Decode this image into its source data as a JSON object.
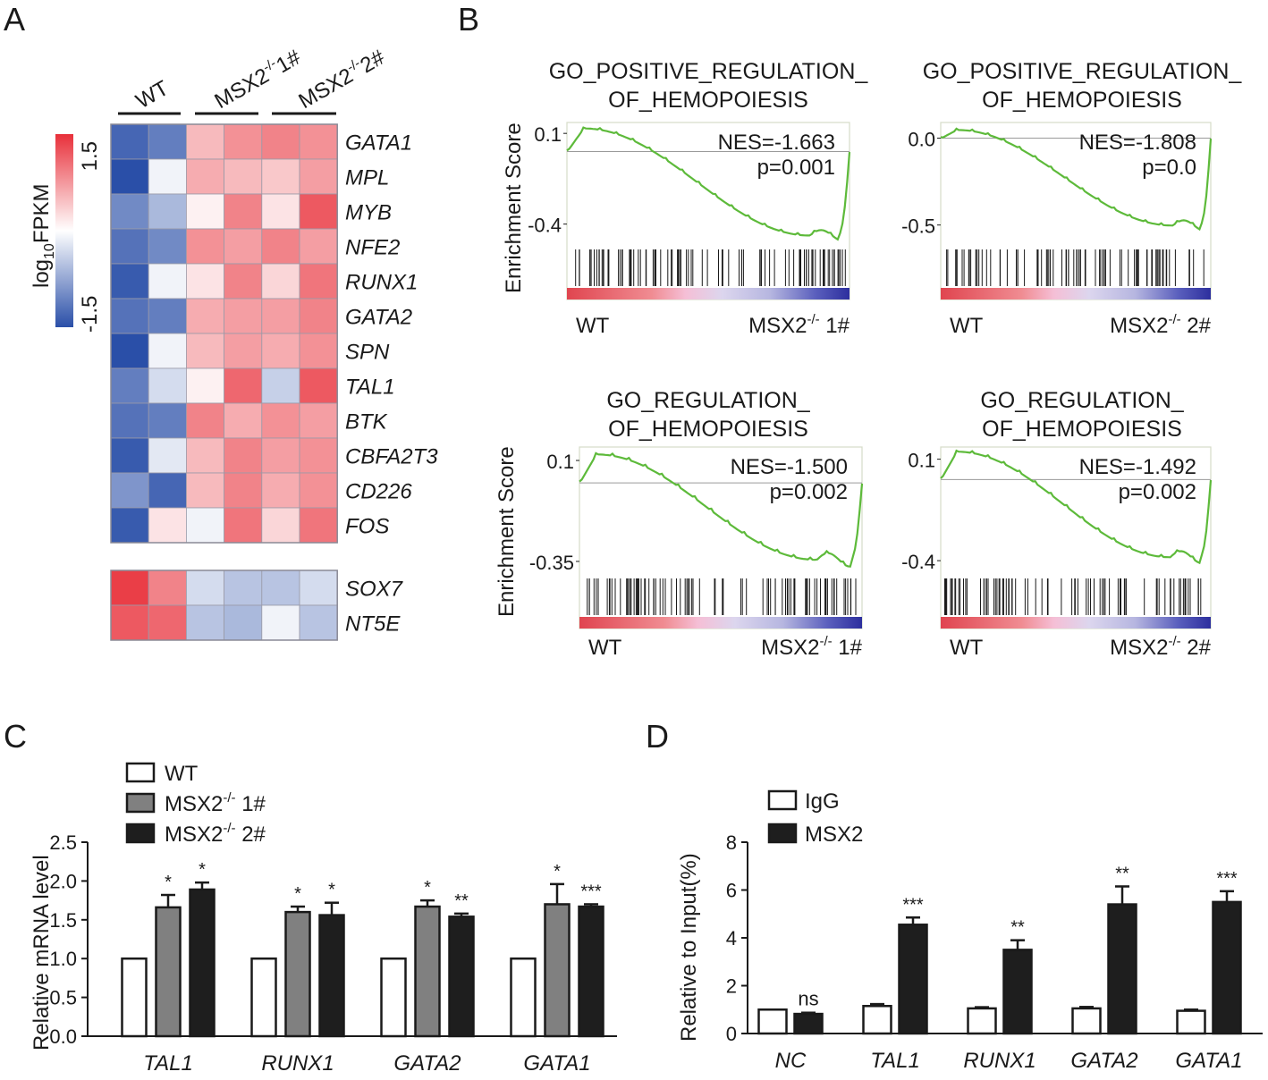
{
  "panels": {
    "a": "A",
    "b": "B",
    "c": "C",
    "d": "D"
  },
  "chart_data": [
    {
      "type": "heatmap",
      "panel": "A",
      "colorbar": {
        "label_main": "log",
        "label_sub": "10",
        "label_tail": "FPKM",
        "max_label": "1.5",
        "min_label": "-1.5",
        "min": -1.5,
        "max": 1.5,
        "low_color": "#2a4fa8",
        "mid_color": "#ffffff",
        "high_color": "#e8303a"
      },
      "groups": [
        {
          "label": "WT",
          "sup": ""
        },
        {
          "label": "MSX2",
          "sup": "-/-",
          "tail": "1#"
        },
        {
          "label": "MSX2",
          "sup": "-/-",
          "tail": "2#"
        }
      ],
      "genes_top": [
        "GATA1",
        "MPL",
        "MYB",
        "NFE2",
        "RUNX1",
        "GATA2",
        "SPN",
        "TAL1",
        "BTK",
        "CBFA2T3",
        "CD226",
        "FOS"
      ],
      "values_top": [
        [
          -1.3,
          -1.1,
          0.5,
          0.8,
          0.9,
          0.8
        ],
        [
          -1.5,
          -0.1,
          0.6,
          0.5,
          0.4,
          0.7
        ],
        [
          -1.0,
          -0.6,
          0.1,
          0.9,
          0.2,
          1.2
        ],
        [
          -1.2,
          -1.0,
          0.8,
          0.7,
          0.9,
          0.7
        ],
        [
          -1.4,
          -0.1,
          0.2,
          0.9,
          0.3,
          1.0
        ],
        [
          -1.2,
          -1.1,
          0.6,
          0.7,
          0.7,
          0.9
        ],
        [
          -1.5,
          -0.1,
          0.5,
          0.7,
          0.6,
          0.8
        ],
        [
          -1.1,
          -0.3,
          0.1,
          1.1,
          -0.4,
          1.2
        ],
        [
          -1.2,
          -1.1,
          0.9,
          0.6,
          0.8,
          0.7
        ],
        [
          -1.4,
          -0.2,
          0.5,
          0.9,
          0.7,
          0.8
        ],
        [
          -0.9,
          -1.3,
          0.5,
          0.9,
          0.6,
          0.8
        ],
        [
          -1.4,
          0.2,
          -0.1,
          1.0,
          0.3,
          1.0
        ]
      ],
      "genes_bottom": [
        "SOX7",
        "NT5E"
      ],
      "values_bottom": [
        [
          1.4,
          0.9,
          -0.3,
          -0.5,
          -0.5,
          -0.3
        ],
        [
          1.2,
          1.1,
          -0.5,
          -0.6,
          -0.1,
          -0.5
        ]
      ]
    },
    {
      "type": "line",
      "panel": "B",
      "ylabel": "Enrichment Score",
      "plots": [
        {
          "title_1": "GO_POSITIVE_REGULATION_",
          "title_2": "OF_HEMOPOIESIS",
          "nes": "NES=-1.663",
          "p": "p=0.001",
          "ytick_top": "0.1",
          "ytick_bottom": "-0.4",
          "ylim": [
            -0.52,
            0.16
          ],
          "ytop": 0.1,
          "ybottom": -0.4,
          "zero": 0.0,
          "x_left": "WT",
          "x_right_main": "MSX2",
          "x_right_sup": "-/-",
          "x_right_tail": " 1#",
          "min_es": -0.46,
          "min_pos": 0.86,
          "peak": 0.13
        },
        {
          "title_1": "GO_POSITIVE_REGULATION_",
          "title_2": "OF_HEMOPOIESIS",
          "nes": "NES=-1.808",
          "p": "p=0.0",
          "ytick_top": "0.0",
          "ytick_bottom": "-0.5",
          "ylim": [
            -0.62,
            0.09
          ],
          "ytop": 0.0,
          "ybottom": -0.5,
          "zero": 0.0,
          "x_left": "WT",
          "x_right_main": "MSX2",
          "x_right_sup": "-/-",
          "x_right_tail": " 2#",
          "min_es": -0.5,
          "min_pos": 0.86,
          "peak": 0.05
        },
        {
          "title_1": "GO_REGULATION_",
          "title_2": "OF_HEMOPOIESIS",
          "nes": "NES=-1.500",
          "p": "p=0.002",
          "ytick_top": "0.1",
          "ytick_bottom": "-0.35",
          "ylim": [
            -0.41,
            0.16
          ],
          "ytop": 0.1,
          "ybottom": -0.35,
          "zero": 0.0,
          "x_left": "WT",
          "x_right_main": "MSX2",
          "x_right_sup": "-/-",
          "x_right_tail": " 1#",
          "min_es": -0.34,
          "min_pos": 0.84,
          "peak": 0.13
        },
        {
          "title_1": "GO_REGULATION_",
          "title_2": "OF_HEMOPOIESIS",
          "nes": "NES=-1.492",
          "p": "p=0.002",
          "ytick_top": "0.1",
          "ytick_bottom": "-0.4",
          "ylim": [
            -0.47,
            0.16
          ],
          "ytop": 0.1,
          "ybottom": -0.4,
          "zero": 0.0,
          "x_left": "WT",
          "x_right_main": "MSX2",
          "x_right_sup": "-/-",
          "x_right_tail": " 2#",
          "min_es": -0.38,
          "min_pos": 0.85,
          "peak": 0.14
        }
      ]
    },
    {
      "type": "bar",
      "panel": "C",
      "ylabel": "Relative mRNA level",
      "ylim": [
        0,
        2.5
      ],
      "yticks": [
        "0.0",
        "0.5",
        "1.0",
        "1.5",
        "2.0",
        "2.5"
      ],
      "categories": [
        "TAL1",
        "RUNX1",
        "GATA2",
        "GATA1"
      ],
      "series": [
        {
          "name": "WT",
          "name_sup": "",
          "name_tail": "",
          "color": "#ffffff",
          "values": [
            1.0,
            1.0,
            1.0,
            1.0
          ],
          "errors": [
            0,
            0,
            0,
            0
          ],
          "sig": [
            "",
            "",
            "",
            ""
          ]
        },
        {
          "name": "MSX2",
          "name_sup": "-/-",
          "name_tail": " 1#",
          "color": "#808080",
          "values": [
            1.66,
            1.6,
            1.67,
            1.7
          ],
          "errors": [
            0.16,
            0.07,
            0.08,
            0.26
          ],
          "sig": [
            "*",
            "*",
            "*",
            "*"
          ]
        },
        {
          "name": "MSX2",
          "name_sup": "-/-",
          "name_tail": " 2#",
          "color": "#1e1e1e",
          "values": [
            1.89,
            1.56,
            1.54,
            1.67
          ],
          "errors": [
            0.09,
            0.16,
            0.04,
            0.03
          ],
          "sig": [
            "*",
            "*",
            "**",
            "***"
          ]
        }
      ]
    },
    {
      "type": "bar",
      "panel": "D",
      "ylabel": "Relative to Input(%)",
      "ylim": [
        0,
        8
      ],
      "yticks": [
        "0",
        "2",
        "4",
        "6",
        "8"
      ],
      "categories": [
        "NC",
        "TAL1",
        "RUNX1",
        "GATA2",
        "GATA1"
      ],
      "series": [
        {
          "name": "IgG",
          "color": "#ffffff",
          "values": [
            1.0,
            1.15,
            1.05,
            1.05,
            0.95
          ],
          "errors": [
            0,
            0.08,
            0.05,
            0.06,
            0.05
          ],
          "sig": [
            "",
            "",
            "",
            "",
            ""
          ]
        },
        {
          "name": "MSX2",
          "color": "#1e1e1e",
          "values": [
            0.82,
            4.55,
            3.5,
            5.4,
            5.5
          ],
          "errors": [
            0.05,
            0.3,
            0.4,
            0.75,
            0.45
          ],
          "sig": [
            "ns",
            "***",
            "**",
            "**",
            "***"
          ]
        }
      ]
    }
  ]
}
